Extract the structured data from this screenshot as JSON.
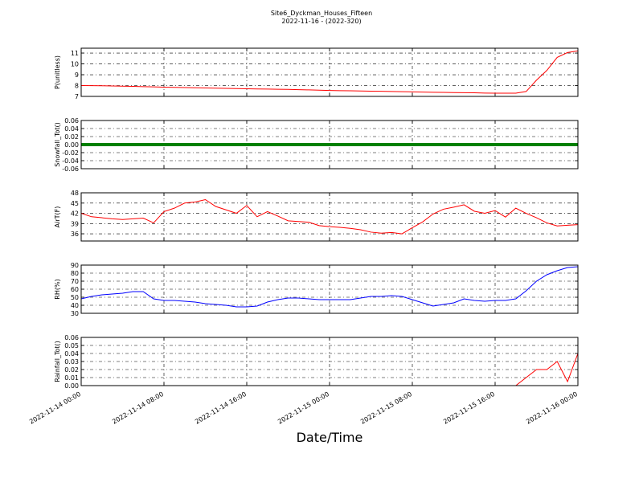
{
  "chart_data": {
    "type": "line",
    "title": "Site6_Dyckman_Houses_Fifteen",
    "subtitle": "2022-11-16 - (2022-320)",
    "xlabel": "Date/Time",
    "grid": true,
    "xlim": [
      "2022-11-14 00:00",
      "2022-11-16 00:00"
    ],
    "xticks": [
      "2022-11-14 00:00",
      "2022-11-14 08:00",
      "2022-11-14 16:00",
      "2022-11-15 00:00",
      "2022-11-15 08:00",
      "2022-11-15 16:00",
      "2022-11-16 00:00"
    ],
    "x": [
      "2022-11-14 00:00",
      "2022-11-14 01:00",
      "2022-11-14 02:00",
      "2022-11-14 03:00",
      "2022-11-14 04:00",
      "2022-11-14 05:00",
      "2022-11-14 06:00",
      "2022-11-14 07:00",
      "2022-11-14 08:00",
      "2022-11-14 09:00",
      "2022-11-14 10:00",
      "2022-11-14 11:00",
      "2022-11-14 12:00",
      "2022-11-14 13:00",
      "2022-11-14 14:00",
      "2022-11-14 15:00",
      "2022-11-14 16:00",
      "2022-11-14 17:00",
      "2022-11-14 18:00",
      "2022-11-14 19:00",
      "2022-11-14 20:00",
      "2022-11-14 21:00",
      "2022-11-14 22:00",
      "2022-11-14 23:00",
      "2022-11-15 00:00",
      "2022-11-15 01:00",
      "2022-11-15 02:00",
      "2022-11-15 03:00",
      "2022-11-15 04:00",
      "2022-11-15 05:00",
      "2022-11-15 06:00",
      "2022-11-15 07:00",
      "2022-11-15 08:00",
      "2022-11-15 09:00",
      "2022-11-15 10:00",
      "2022-11-15 11:00",
      "2022-11-15 12:00",
      "2022-11-15 13:00",
      "2022-11-15 14:00",
      "2022-11-15 15:00",
      "2022-11-15 16:00",
      "2022-11-15 17:00",
      "2022-11-15 18:00",
      "2022-11-15 19:00",
      "2022-11-15 20:00",
      "2022-11-15 21:00",
      "2022-11-15 22:00",
      "2022-11-15 23:00",
      "2022-11-16 00:00"
    ],
    "panels": [
      {
        "ylabel": "P(unitless)",
        "ylim": [
          7,
          11.45
        ],
        "yticks": [
          7,
          8,
          9,
          10,
          11
        ],
        "series": [
          {
            "color": "#ff0000",
            "values": [
              8.0,
              7.99,
              7.98,
              7.96,
              7.95,
              7.93,
              7.9,
              7.88,
              7.85,
              7.83,
              7.82,
              7.8,
              7.78,
              7.76,
              7.74,
              7.72,
              7.7,
              7.69,
              7.68,
              7.66,
              7.65,
              7.62,
              7.6,
              7.57,
              7.55,
              7.53,
              7.52,
              7.5,
              7.48,
              7.47,
              7.45,
              7.44,
              7.42,
              7.4,
              7.38,
              7.37,
              7.35,
              7.34,
              7.33,
              7.31,
              7.3,
              7.3,
              7.3,
              7.45,
              8.5,
              9.4,
              10.6,
              11.05,
              11.2
            ]
          }
        ]
      },
      {
        "ylabel": "Snowfall_Tot()",
        "ylim": [
          -0.06,
          0.06
        ],
        "yticks": [
          -0.06,
          -0.04,
          -0.02,
          {
            "value": 0,
            "label": "0.00"
          },
          0.02,
          0.04,
          0.06
        ],
        "series": [
          {
            "color": "#008000",
            "values": [
              0,
              0,
              0,
              0,
              0,
              0,
              0,
              0,
              0,
              0,
              0,
              0,
              0,
              0,
              0,
              0,
              0,
              0,
              0,
              0,
              0,
              0,
              0,
              0,
              0,
              0,
              0,
              0,
              0,
              0,
              0,
              0,
              0,
              0,
              0,
              0,
              0,
              0,
              0,
              0,
              0,
              0,
              0,
              0,
              0,
              0,
              0,
              0,
              0
            ]
          }
        ]
      },
      {
        "ylabel": "AirT(F)",
        "ylim": [
          33.9,
          48
        ],
        "yticks": [
          36,
          39,
          42,
          45,
          48
        ],
        "series": [
          {
            "color": "#ff0000",
            "values": [
              42.0,
              41.0,
              40.7,
              40.4,
              40.2,
              40.4,
              40.6,
              39.2,
              42.5,
              43.5,
              45.0,
              45.3,
              46.0,
              44.0,
              43.0,
              42.0,
              44.3,
              41.0,
              42.5,
              41.2,
              39.8,
              39.6,
              39.4,
              38.4,
              38.1,
              37.9,
              37.6,
              37.2,
              36.5,
              36.2,
              36.4,
              36.0,
              37.8,
              39.5,
              41.8,
              43.2,
              43.8,
              44.5,
              42.6,
              42.0,
              42.8,
              40.9,
              43.5,
              42.0,
              40.7,
              39.2,
              38.3,
              38.5,
              38.7
            ]
          }
        ]
      },
      {
        "ylabel": "RH(%)",
        "ylim": [
          30,
          90
        ],
        "yticks": [
          30,
          40,
          50,
          60,
          70,
          80,
          90
        ],
        "series": [
          {
            "color": "#0000ff",
            "values": [
              48,
              51,
              53,
              54,
              55,
              57,
              57,
              48,
              46,
              46,
              45,
              44,
              42,
              41,
              40,
              38,
              38,
              39,
              44,
              47,
              49,
              49,
              48,
              47,
              47,
              47,
              47,
              49,
              51,
              51,
              52,
              51,
              47,
              43,
              39,
              41,
              43,
              48,
              46,
              45,
              46,
              46,
              48,
              58,
              70,
              78,
              83,
              87,
              88
            ]
          }
        ]
      },
      {
        "ylabel": "Rainfall_Tot()",
        "ylim": [
          0,
          0.06
        ],
        "yticks": [
          {
            "value": 0,
            "label": "0.00"
          },
          0.01,
          0.02,
          0.03,
          0.04,
          0.05,
          0.06
        ],
        "series": [
          {
            "color": "#ff0000",
            "values": [
              0,
              0,
              0,
              0,
              0,
              0,
              0,
              0,
              0,
              0,
              0,
              0,
              0,
              0,
              0,
              0,
              0,
              0,
              0,
              0,
              0,
              0,
              0,
              0,
              0,
              0,
              0,
              0,
              0,
              0,
              0,
              0,
              0,
              0,
              0,
              0,
              0,
              0,
              0,
              0,
              0,
              0,
              0,
              0.01,
              0.02,
              0.02,
              0.03,
              0.005,
              0.04
            ]
          }
        ]
      }
    ]
  }
}
